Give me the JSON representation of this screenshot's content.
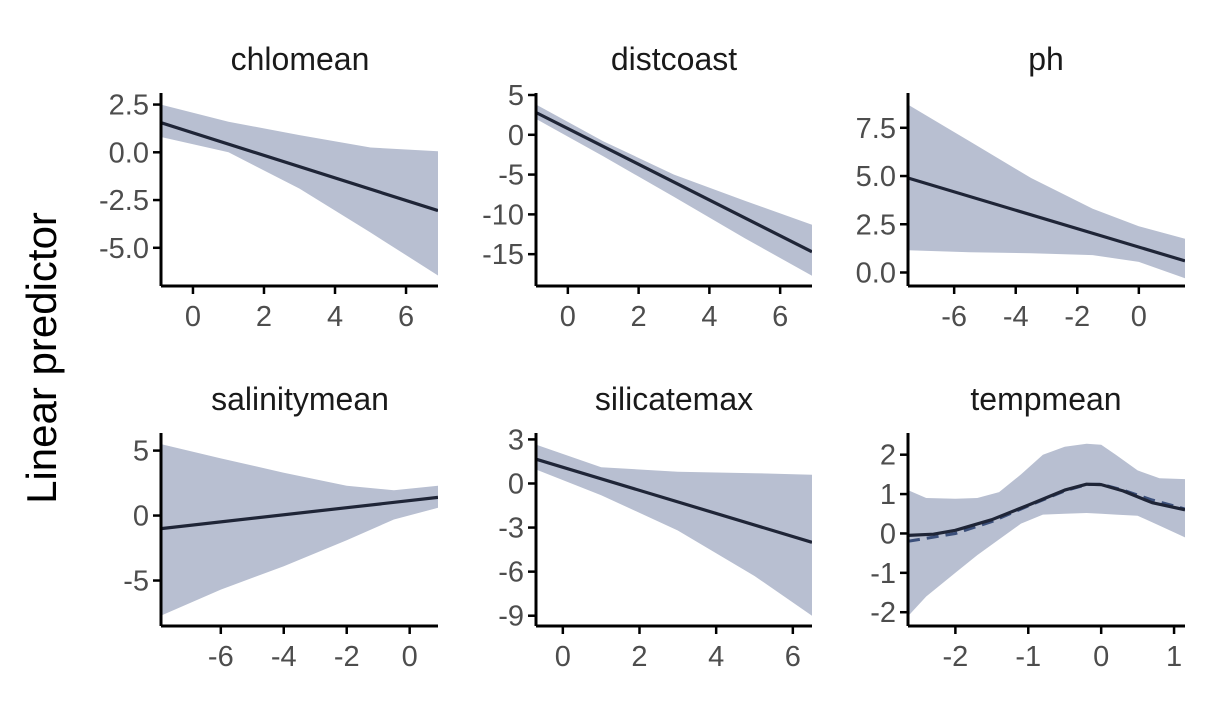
{
  "figure": {
    "ylabel": "Linear predictor",
    "colors": {
      "band": "#b8bfd1",
      "line": "#1f2537",
      "dashed": "#3b4f7a",
      "axis": "#000000"
    }
  },
  "chart_data": [
    {
      "type": "line",
      "title": "chlomean",
      "xlabel": "",
      "ylabel": "Linear predictor",
      "xlim": [
        -0.9,
        6.9
      ],
      "ylim": [
        -7,
        3
      ],
      "xticks": [
        0,
        2,
        4,
        6
      ],
      "xtick_labels": [
        "0",
        "2",
        "4",
        "6"
      ],
      "yticks": [
        2.5,
        0.0,
        -2.5,
        -5.0
      ],
      "ytick_labels": [
        "2.5",
        "0.0",
        "-2.5",
        "-5.0"
      ],
      "series": [
        {
          "role": "fit",
          "x": [
            -0.9,
            6.9
          ],
          "y": [
            1.55,
            -3.05
          ]
        },
        {
          "role": "band",
          "x": [
            -0.9,
            1,
            3,
            5,
            6.9
          ],
          "lower": [
            0.8,
            0.0,
            -1.9,
            -4.2,
            -6.45
          ],
          "upper": [
            2.5,
            1.6,
            0.9,
            0.25,
            0.05
          ]
        }
      ]
    },
    {
      "type": "line",
      "title": "distcoast",
      "xlabel": "",
      "ylabel": "Linear predictor",
      "xlim": [
        -0.9,
        6.9
      ],
      "ylim": [
        -19,
        5
      ],
      "xticks": [
        0,
        2,
        4,
        6
      ],
      "xtick_labels": [
        "0",
        "2",
        "4",
        "6"
      ],
      "yticks": [
        5,
        0,
        -5,
        -10,
        -15
      ],
      "ytick_labels": [
        "5",
        "0",
        "-5",
        "-10",
        "-15"
      ],
      "series": [
        {
          "role": "fit",
          "x": [
            -0.9,
            6.9
          ],
          "y": [
            2.8,
            -14.7
          ]
        },
        {
          "role": "band",
          "x": [
            -0.9,
            1,
            3,
            5,
            6.9
          ],
          "lower": [
            2.0,
            -2.7,
            -7.8,
            -13.0,
            -17.7
          ],
          "upper": [
            3.8,
            -0.8,
            -5.0,
            -8.3,
            -11.3
          ]
        }
      ]
    },
    {
      "type": "line",
      "title": "ph",
      "xlabel": "",
      "ylabel": "Linear predictor",
      "xlim": [
        -7.5,
        1.5
      ],
      "ylim": [
        -0.7,
        9.2
      ],
      "xticks": [
        -6,
        -4,
        -2,
        0
      ],
      "xtick_labels": [
        "-6",
        "-4",
        "-2",
        "0"
      ],
      "yticks": [
        7.5,
        5.0,
        2.5,
        0.0
      ],
      "ytick_labels": [
        "7.5",
        "5.0",
        "2.5",
        "0.0"
      ],
      "series": [
        {
          "role": "fit",
          "x": [
            -7.5,
            1.5
          ],
          "y": [
            4.9,
            0.6
          ]
        },
        {
          "role": "band",
          "x": [
            -7.5,
            -5.5,
            -3.5,
            -1.5,
            0,
            1.5
          ],
          "lower": [
            1.15,
            1.05,
            1.0,
            0.9,
            0.55,
            -0.3
          ],
          "upper": [
            8.7,
            6.8,
            4.9,
            3.3,
            2.4,
            1.75
          ]
        }
      ]
    },
    {
      "type": "line",
      "title": "salinitymean",
      "xlabel": "",
      "ylabel": "Linear predictor",
      "xlim": [
        -7.9,
        0.9
      ],
      "ylim": [
        -8.5,
        6.2
      ],
      "xticks": [
        -6,
        -4,
        -2,
        0
      ],
      "xtick_labels": [
        "-6",
        "-4",
        "-2",
        "0"
      ],
      "yticks": [
        5,
        0,
        -5
      ],
      "ytick_labels": [
        "5",
        "0",
        "-5"
      ],
      "series": [
        {
          "role": "fit",
          "x": [
            -7.9,
            0.9
          ],
          "y": [
            -1.0,
            1.4
          ]
        },
        {
          "role": "band",
          "x": [
            -7.9,
            -6,
            -4,
            -2,
            -0.5,
            0.9
          ],
          "lower": [
            -7.7,
            -5.7,
            -3.9,
            -1.9,
            -0.3,
            0.6
          ],
          "upper": [
            5.5,
            4.4,
            3.3,
            2.3,
            1.95,
            2.3
          ]
        }
      ]
    },
    {
      "type": "line",
      "title": "silicatemax",
      "xlabel": "",
      "ylabel": "Linear predictor",
      "xlim": [
        -0.7,
        6.5
      ],
      "ylim": [
        -9.7,
        3.3
      ],
      "xticks": [
        0,
        2,
        4,
        6
      ],
      "xtick_labels": [
        "0",
        "2",
        "4",
        "6"
      ],
      "yticks": [
        3,
        0,
        -3,
        -6,
        -9
      ],
      "ytick_labels": [
        "3",
        "0",
        "-3",
        "-6",
        "-9"
      ],
      "series": [
        {
          "role": "fit",
          "x": [
            -0.7,
            6.5
          ],
          "y": [
            1.65,
            -4.0
          ]
        },
        {
          "role": "band",
          "x": [
            -0.7,
            1,
            3,
            5,
            6.5
          ],
          "lower": [
            0.95,
            -0.8,
            -3.2,
            -6.3,
            -9.0
          ],
          "upper": [
            2.65,
            1.1,
            0.8,
            0.7,
            0.6
          ]
        }
      ]
    },
    {
      "type": "line",
      "title": "tempmean",
      "xlabel": "",
      "ylabel": "Linear predictor",
      "xlim": [
        -2.65,
        1.15
      ],
      "ylim": [
        -2.35,
        2.5
      ],
      "xticks": [
        -2,
        -1,
        0,
        1
      ],
      "xtick_labels": [
        "-2",
        "-1",
        "0",
        "1"
      ],
      "yticks": [
        2,
        1,
        0,
        -1,
        -2
      ],
      "ytick_labels": [
        "2",
        "1",
        "0",
        "-1",
        "-2"
      ],
      "series": [
        {
          "role": "fit",
          "x": [
            -2.65,
            -2.3,
            -2.0,
            -1.5,
            -1.0,
            -0.5,
            -0.2,
            0.0,
            0.3,
            0.7,
            1.15
          ],
          "y": [
            -0.05,
            -0.02,
            0.08,
            0.35,
            0.72,
            1.1,
            1.25,
            1.24,
            1.08,
            0.78,
            0.6
          ]
        },
        {
          "role": "reference",
          "style": "dashed",
          "x": [
            -2.65,
            -2.0,
            -1.5,
            -1.0,
            -0.5,
            -0.2,
            0.0,
            0.3,
            0.7,
            1.15
          ],
          "y": [
            -0.2,
            0.0,
            0.3,
            0.7,
            1.08,
            1.24,
            1.25,
            1.1,
            0.85,
            0.62
          ]
        },
        {
          "role": "band",
          "x": [
            -2.65,
            -2.4,
            -2.0,
            -1.7,
            -1.4,
            -1.1,
            -0.8,
            -0.5,
            -0.2,
            0.0,
            0.2,
            0.5,
            0.8,
            1.15
          ],
          "lower": [
            -2.1,
            -1.6,
            -1.0,
            -0.55,
            -0.15,
            0.25,
            0.48,
            0.5,
            0.52,
            0.5,
            0.48,
            0.45,
            0.2,
            -0.1
          ],
          "upper": [
            1.1,
            0.9,
            0.88,
            0.9,
            1.05,
            1.5,
            2.0,
            2.2,
            2.28,
            2.25,
            2.0,
            1.6,
            1.4,
            1.38
          ]
        }
      ]
    }
  ]
}
